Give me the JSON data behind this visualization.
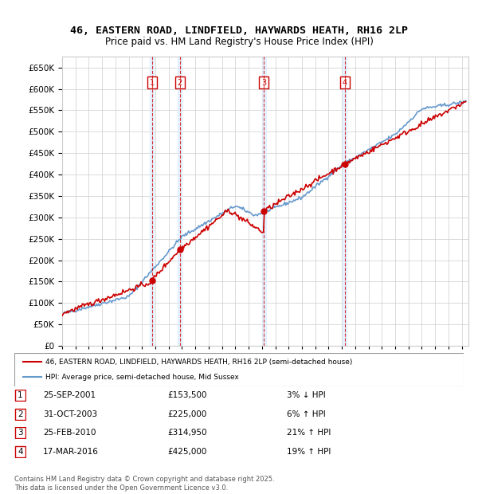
{
  "title": "46, EASTERN ROAD, LINDFIELD, HAYWARDS HEATH, RH16 2LP",
  "subtitle": "Price paid vs. HM Land Registry's House Price Index (HPI)",
  "ylim": [
    0,
    675000
  ],
  "yticks": [
    0,
    50000,
    100000,
    150000,
    200000,
    250000,
    300000,
    350000,
    400000,
    450000,
    500000,
    550000,
    600000,
    650000
  ],
  "xlim_start": 1995.0,
  "xlim_end": 2025.5,
  "grid_color": "#cccccc",
  "sale_color": "#cc0000",
  "hpi_color": "#6699cc",
  "purchases": [
    {
      "date_num": 2001.73,
      "price": 153500,
      "label": "1"
    },
    {
      "date_num": 2003.83,
      "price": 225000,
      "label": "2"
    },
    {
      "date_num": 2010.15,
      "price": 314950,
      "label": "3"
    },
    {
      "date_num": 2016.22,
      "price": 425000,
      "label": "4"
    }
  ],
  "table_rows": [
    {
      "num": "1",
      "date": "25-SEP-2001",
      "price": "£153,500",
      "change": "3% ↓ HPI"
    },
    {
      "num": "2",
      "date": "31-OCT-2003",
      "price": "£225,000",
      "change": "6% ↑ HPI"
    },
    {
      "num": "3",
      "date": "25-FEB-2010",
      "price": "£314,950",
      "change": "21% ↑ HPI"
    },
    {
      "num": "4",
      "date": "17-MAR-2016",
      "price": "£425,000",
      "change": "19% ↑ HPI"
    }
  ],
  "legend_line1": "46, EASTERN ROAD, LINDFIELD, HAYWARDS HEATH, RH16 2LP (semi-detached house)",
  "legend_line2": "HPI: Average price, semi-detached house, Mid Sussex",
  "footer": "Contains HM Land Registry data © Crown copyright and database right 2025.\nThis data is licensed under the Open Government Licence v3.0."
}
